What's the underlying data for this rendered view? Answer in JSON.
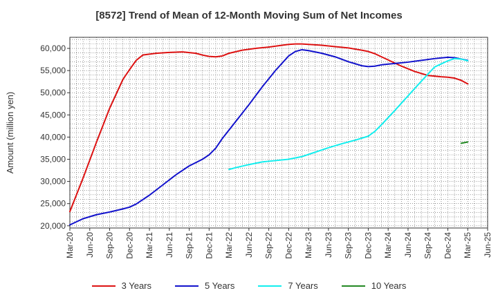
{
  "chart_data": {
    "type": "line",
    "title": "[8572]  Trend of Mean of 12-Month Moving Sum of Net Incomes",
    "ylabel": "Amount (million yen)",
    "xlabel": "",
    "ylim": [
      19500,
      62500
    ],
    "yticks": [
      20000,
      25000,
      30000,
      35000,
      40000,
      45000,
      50000,
      55000,
      60000
    ],
    "ytick_labels": [
      "20,000",
      "25,000",
      "30,000",
      "35,000",
      "40,000",
      "45,000",
      "50,000",
      "55,000",
      "60,000"
    ],
    "x_start": "2020-03",
    "xticks": [
      "Mar-20",
      "Jun-20",
      "Sep-20",
      "Dec-20",
      "Mar-21",
      "Jun-21",
      "Sep-21",
      "Dec-21",
      "Mar-22",
      "Jun-22",
      "Sep-22",
      "Dec-22",
      "Mar-23",
      "Jun-23",
      "Sep-23",
      "Dec-23",
      "Mar-24",
      "Jun-24",
      "Sep-24",
      "Dec-24",
      "Mar-25",
      "Jun-25"
    ],
    "grid": true,
    "legend_position": "bottom",
    "series": [
      {
        "name": "3 Years",
        "color": "#dd1111",
        "x": [
          "Mar-20",
          "May-20",
          "Jul-20",
          "Sep-20",
          "Nov-20",
          "Dec-20",
          "Jan-21",
          "Feb-21",
          "Apr-21",
          "Jun-21",
          "Aug-21",
          "Oct-21",
          "Nov-21",
          "Dec-21",
          "Jan-22",
          "Feb-22",
          "Mar-22",
          "May-22",
          "Jul-22",
          "Sep-22",
          "Nov-22",
          "Dec-22",
          "Jan-23",
          "Feb-23",
          "Mar-23",
          "May-23",
          "Jul-23",
          "Sep-23",
          "Nov-23",
          "Dec-23",
          "Jan-24",
          "Feb-24",
          "Mar-24",
          "May-24",
          "Jul-24",
          "Sep-24",
          "Nov-24",
          "Dec-24",
          "Jan-25",
          "Feb-25",
          "Mar-25"
        ],
        "values": [
          23200,
          30800,
          38800,
          46500,
          53000,
          55200,
          57300,
          58500,
          58900,
          59100,
          59200,
          58900,
          58500,
          58200,
          58100,
          58300,
          58900,
          59600,
          60000,
          60300,
          60700,
          60900,
          61000,
          61000,
          60900,
          60700,
          60400,
          60100,
          59600,
          59300,
          58800,
          58100,
          57400,
          56000,
          54800,
          53900,
          53600,
          53500,
          53300,
          52800,
          52000
        ]
      },
      {
        "name": "5 Years",
        "color": "#1111cc",
        "x": [
          "Mar-20",
          "May-20",
          "Jul-20",
          "Sep-20",
          "Nov-20",
          "Dec-20",
          "Jan-21",
          "Mar-21",
          "May-21",
          "Jul-21",
          "Sep-21",
          "Nov-21",
          "Dec-21",
          "Jan-22",
          "Feb-22",
          "Apr-22",
          "Jun-22",
          "Aug-22",
          "Oct-22",
          "Dec-22",
          "Jan-23",
          "Feb-23",
          "Mar-23",
          "May-23",
          "Jul-23",
          "Sep-23",
          "Nov-23",
          "Dec-23",
          "Jan-24",
          "Feb-24",
          "Apr-24",
          "Jun-24",
          "Aug-24",
          "Oct-24",
          "Dec-24",
          "Jan-25",
          "Feb-25",
          "Mar-25"
        ],
        "values": [
          20200,
          21600,
          22500,
          23100,
          23800,
          24200,
          24900,
          26900,
          29200,
          31500,
          33500,
          35000,
          36000,
          37500,
          39700,
          43500,
          47300,
          51300,
          55000,
          58300,
          59300,
          59700,
          59500,
          58900,
          58100,
          57000,
          56100,
          55900,
          56000,
          56300,
          56600,
          56900,
          57300,
          57700,
          58000,
          57900,
          57600,
          57300
        ]
      },
      {
        "name": "7 Years",
        "color": "#11eeee",
        "x": [
          "Mar-22",
          "Apr-22",
          "Jun-22",
          "Aug-22",
          "Oct-22",
          "Dec-22",
          "Feb-23",
          "Apr-23",
          "Jun-23",
          "Aug-23",
          "Oct-23",
          "Dec-23",
          "Jan-24",
          "Feb-24",
          "Apr-24",
          "Jun-24",
          "Aug-24",
          "Oct-24",
          "Dec-24",
          "Jan-25",
          "Feb-25",
          "Mar-25"
        ],
        "values": [
          32700,
          33100,
          33800,
          34400,
          34700,
          35000,
          35600,
          36600,
          37600,
          38500,
          39300,
          40200,
          41300,
          42800,
          46000,
          49300,
          52600,
          55800,
          57200,
          57700,
          57600,
          57200
        ]
      },
      {
        "name": "10 Years",
        "color": "#228822",
        "x": [
          "Feb-25",
          "Mar-25"
        ],
        "values": [
          38600,
          38900
        ]
      }
    ]
  }
}
